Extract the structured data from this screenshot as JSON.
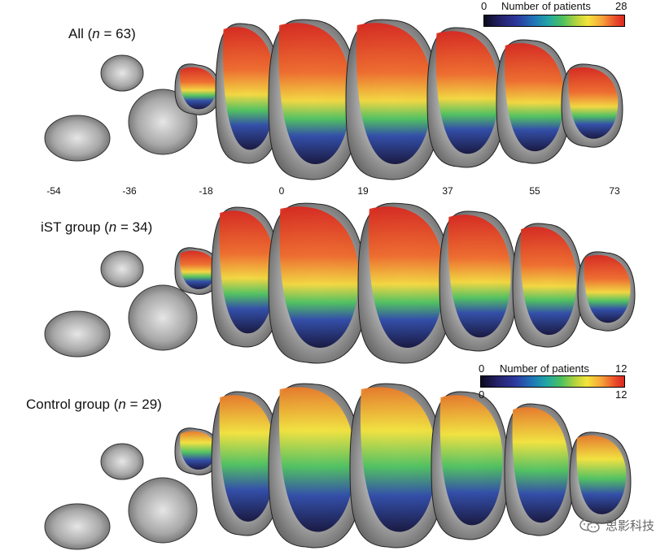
{
  "panels": [
    {
      "id": "all",
      "label": "All",
      "n": "63"
    },
    {
      "id": "ist",
      "label": "iST group",
      "n": "34"
    },
    {
      "id": "ctrl",
      "label": "Control group",
      "n": "29"
    }
  ],
  "colorbars": {
    "top": {
      "title": "Number of patients",
      "min": "0",
      "max": "28"
    },
    "control": {
      "title": "Number of patients",
      "min": "0",
      "max": "12",
      "min_below": "0",
      "max_below": "12"
    }
  },
  "coordinates": [
    "-54",
    "-36",
    "-18",
    "0",
    "19",
    "37",
    "55",
    "73"
  ],
  "watermark": {
    "text": "思影科技",
    "icon": "wechat-icon"
  },
  "colors": {
    "low": "#1c1c5a",
    "mid": "#4cc15e",
    "high": "#d9281f",
    "brain_gray": "#8a8a8a"
  }
}
